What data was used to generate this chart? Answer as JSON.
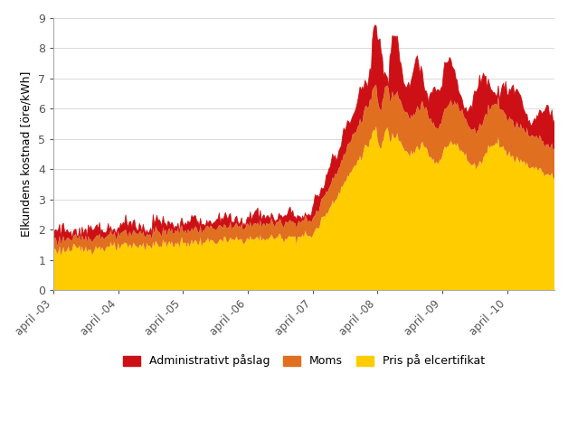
{
  "ylabel": "Elkundens kostnad [öre/kWh]",
  "ylim": [
    0,
    9
  ],
  "yticks": [
    0,
    1,
    2,
    3,
    4,
    5,
    6,
    7,
    8,
    9
  ],
  "colors": {
    "cert": "#FFCC00",
    "moms": "#E07020",
    "admin": "#CC1015"
  },
  "legend": [
    {
      "label": "Administrativt påslag",
      "color": "#CC1015"
    },
    {
      "label": "Moms",
      "color": "#E07020"
    },
    {
      "label": "Pris på elcertifikat",
      "color": "#FFCC00"
    }
  ],
  "xtick_labels": [
    "april -03",
    "april -04",
    "april -05",
    "april -06",
    "april -07",
    "april -08",
    "april -09",
    "april -10"
  ],
  "background_color": "#ffffff"
}
